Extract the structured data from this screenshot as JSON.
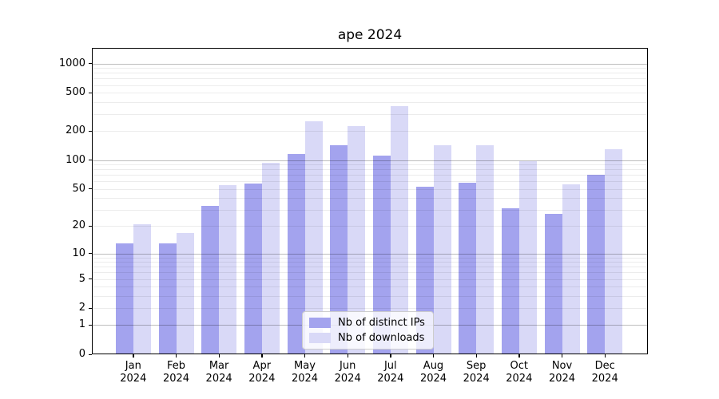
{
  "figure": {
    "title": "ape 2024"
  },
  "chart_data": {
    "type": "bar",
    "title": "ape 2024",
    "categories": [
      "Jan",
      "Feb",
      "Mar",
      "Apr",
      "May",
      "Jun",
      "Jul",
      "Aug",
      "Sep",
      "Oct",
      "Nov",
      "Dec"
    ],
    "category_year": "2024",
    "series": [
      {
        "name": "Nb of distinct IPs",
        "color": "#a3a3ee",
        "values": [
          13,
          13,
          33,
          57,
          115,
          142,
          111,
          53,
          58,
          31,
          27,
          70
        ]
      },
      {
        "name": "Nb of downloads",
        "color": "#d9d9f7",
        "values": [
          21,
          17,
          55,
          93,
          251,
          224,
          365,
          144,
          143,
          97,
          56,
          130
        ]
      }
    ],
    "yscale": "log1p",
    "yticks": [
      0,
      1,
      2,
      5,
      10,
      20,
      50,
      100,
      200,
      500,
      1000
    ],
    "major_gridlines": [
      1,
      10,
      100,
      1000
    ],
    "ylim": [
      0,
      1450
    ],
    "xlabel": "",
    "ylabel": "",
    "grid": true,
    "grid_above_bars": true,
    "legend_position": "lower center"
  }
}
